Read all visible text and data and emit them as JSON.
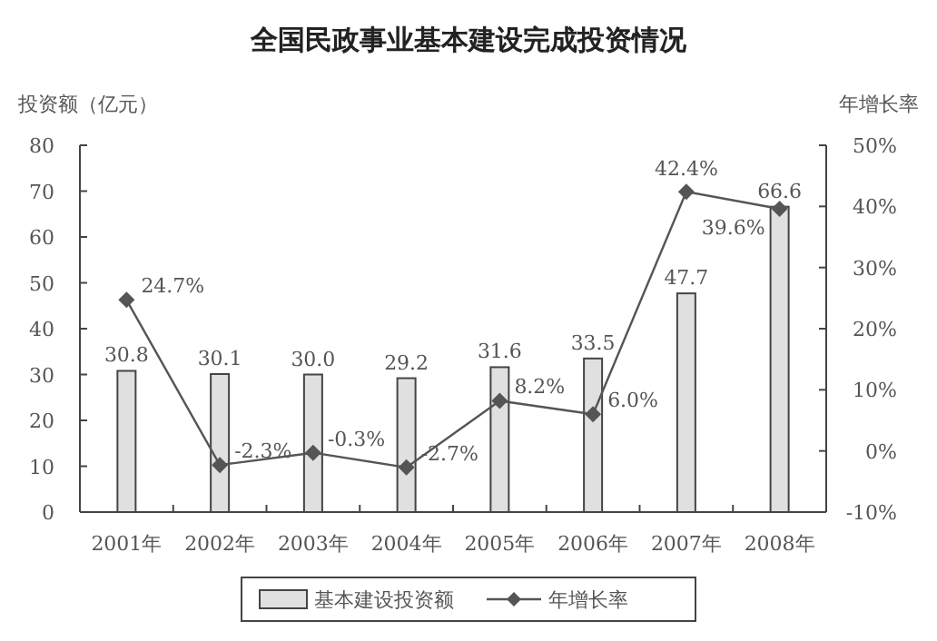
{
  "chart_data": {
    "type": "bar",
    "title": "全国民政事业基本建设完成投资情况",
    "ylabel": "投资额（亿元）",
    "y2label": "年增长率",
    "categories": [
      "2001年",
      "2002年",
      "2003年",
      "2004年",
      "2005年",
      "2006年",
      "2007年",
      "2008年"
    ],
    "series": [
      {
        "name": "基本建设投资额",
        "color": "#e0e0e0",
        "values": [
          30.8,
          30.1,
          30.0,
          29.2,
          31.6,
          33.5,
          47.7,
          66.6
        ],
        "value_labels": [
          "30.8",
          "30.1",
          "30.0",
          "29.2",
          "31.6",
          "33.5",
          "47.7",
          "66.6"
        ]
      },
      {
        "name": "年增长率",
        "type": "line",
        "axis": "y2",
        "color": "#555555",
        "marker": "diamond",
        "values": [
          24.7,
          -2.3,
          -0.3,
          -2.7,
          8.2,
          6.0,
          42.4,
          39.6
        ],
        "value_labels": [
          "24.7%",
          "-2.3%",
          "-0.3%",
          "-2.7%",
          "8.2%",
          "6.0%",
          "42.4%",
          "39.6%"
        ]
      }
    ],
    "ylim": [
      0,
      80
    ],
    "yticks": [
      0,
      10,
      20,
      30,
      40,
      50,
      60,
      70,
      80
    ],
    "y2lim": [
      -10,
      50
    ],
    "y2ticks": [
      {
        "value": -10,
        "label": "-10%"
      },
      {
        "value": 0,
        "label": "0%"
      },
      {
        "value": 10,
        "label": "10%"
      },
      {
        "value": 20,
        "label": "20%"
      },
      {
        "value": 30,
        "label": "30%"
      },
      {
        "value": 40,
        "label": "40%"
      },
      {
        "value": 50,
        "label": "50%"
      }
    ],
    "grid": false,
    "legend": "bottom"
  }
}
